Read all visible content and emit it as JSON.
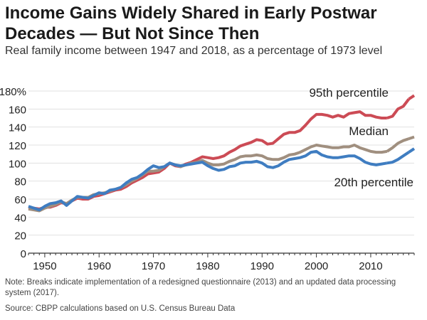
{
  "title": "Income Gains Widely Shared in Early Postwar Decades — But Not Since Then",
  "subtitle": "Real family income between 1947 and 2018, as a percentage of 1973 level",
  "note": "Note: Breaks indicate implementation of a redesigned questionnaire (2013) and an updated data processing system (2017).",
  "source": "Source: CBPP calculations based on U.S. Census Bureau Data",
  "chart_data": {
    "type": "line",
    "title": "Income Gains Widely Shared in Early Postwar Decades — But Not Since Then",
    "subtitle": "Real family income between 1947 and 2018, as a percentage of 1973 level",
    "xlim": [
      1947,
      2018
    ],
    "ylim": [
      0,
      180
    ],
    "x_ticks": [
      1950,
      1960,
      1970,
      1980,
      1990,
      2000,
      2010
    ],
    "y_ticks": [
      0,
      20,
      40,
      60,
      80,
      100,
      120,
      140,
      160,
      180
    ],
    "y_tick_labels": [
      "0",
      "20",
      "40",
      "60",
      "80",
      "100",
      "120",
      "140",
      "160",
      "180%"
    ],
    "grid": "horizontal",
    "breaks": [
      2013,
      2017
    ],
    "series": [
      {
        "name": "95th percentile",
        "color": "#cc4b55",
        "x": [
          1947,
          1948,
          1949,
          1950,
          1951,
          1952,
          1953,
          1954,
          1955,
          1956,
          1957,
          1958,
          1959,
          1960,
          1961,
          1962,
          1963,
          1964,
          1965,
          1966,
          1967,
          1968,
          1969,
          1970,
          1971,
          1972,
          1973,
          1974,
          1975,
          1976,
          1977,
          1978,
          1979,
          1980,
          1981,
          1982,
          1983,
          1984,
          1985,
          1986,
          1987,
          1988,
          1989,
          1990,
          1991,
          1992,
          1993,
          1994,
          1995,
          1996,
          1997,
          1998,
          1999,
          2000,
          2001,
          2002,
          2003,
          2004,
          2005,
          2006,
          2007,
          2008,
          2009,
          2010,
          2011,
          2012,
          2013,
          2014,
          2015,
          2016,
          2017,
          2018
        ],
        "values": [
          51,
          50,
          49,
          51,
          51,
          53,
          56,
          55,
          58,
          61,
          60,
          60,
          63,
          64,
          66,
          68,
          70,
          71,
          74,
          78,
          81,
          84,
          88,
          89,
          90,
          94,
          100,
          97,
          96,
          99,
          101,
          104,
          107,
          106,
          105,
          106,
          108,
          112,
          115,
          119,
          121,
          123,
          126,
          125,
          121,
          122,
          127,
          132,
          134,
          134,
          136,
          142,
          149,
          154,
          154,
          153,
          151,
          153,
          151,
          155,
          156,
          157,
          153,
          153,
          151,
          150,
          150,
          152,
          160,
          163,
          171,
          175
        ],
        "segments": [
          [
            1947,
            2013
          ],
          [
            2013,
            2017
          ],
          [
            2017,
            2018
          ]
        ]
      },
      {
        "name": "Median",
        "color": "#a08f7f",
        "x": [
          1947,
          1948,
          1949,
          1950,
          1951,
          1952,
          1953,
          1954,
          1955,
          1956,
          1957,
          1958,
          1959,
          1960,
          1961,
          1962,
          1963,
          1964,
          1965,
          1966,
          1967,
          1968,
          1969,
          1970,
          1971,
          1972,
          1973,
          1974,
          1975,
          1976,
          1977,
          1978,
          1979,
          1980,
          1981,
          1982,
          1983,
          1984,
          1985,
          1986,
          1987,
          1988,
          1989,
          1990,
          1991,
          1992,
          1993,
          1994,
          1995,
          1996,
          1997,
          1998,
          1999,
          2000,
          2001,
          2002,
          2003,
          2004,
          2005,
          2006,
          2007,
          2008,
          2009,
          2010,
          2011,
          2012,
          2013,
          2014,
          2015,
          2016,
          2017,
          2018
        ],
        "values": [
          49,
          48,
          47,
          50,
          52,
          54,
          57,
          55,
          59,
          62,
          62,
          62,
          65,
          66,
          67,
          69,
          71,
          73,
          76,
          80,
          83,
          87,
          91,
          91,
          92,
          96,
          100,
          98,
          96,
          98,
          100,
          101,
          103,
          100,
          98,
          98,
          99,
          102,
          104,
          107,
          108,
          108,
          109,
          108,
          105,
          104,
          104,
          106,
          109,
          110,
          112,
          115,
          118,
          120,
          119,
          118,
          117,
          117,
          118,
          118,
          120,
          117,
          115,
          113,
          112,
          112,
          113,
          117,
          122,
          125,
          127,
          129
        ],
        "segments": [
          [
            1947,
            2013
          ],
          [
            2013,
            2017
          ],
          [
            2017,
            2018
          ]
        ]
      },
      {
        "name": "20th percentile",
        "color": "#3f7dc1",
        "x": [
          1947,
          1948,
          1949,
          1950,
          1951,
          1952,
          1953,
          1954,
          1955,
          1956,
          1957,
          1958,
          1959,
          1960,
          1961,
          1962,
          1963,
          1964,
          1965,
          1966,
          1967,
          1968,
          1969,
          1970,
          1971,
          1972,
          1973,
          1974,
          1975,
          1976,
          1977,
          1978,
          1979,
          1980,
          1981,
          1982,
          1983,
          1984,
          1985,
          1986,
          1987,
          1988,
          1989,
          1990,
          1991,
          1992,
          1993,
          1994,
          1995,
          1996,
          1997,
          1998,
          1999,
          2000,
          2001,
          2002,
          2003,
          2004,
          2005,
          2006,
          2007,
          2008,
          2009,
          2010,
          2011,
          2012,
          2013,
          2014,
          2015,
          2016,
          2017,
          2018
        ],
        "values": [
          52,
          50,
          48,
          52,
          55,
          56,
          58,
          53,
          58,
          63,
          62,
          61,
          64,
          67,
          66,
          70,
          71,
          73,
          78,
          82,
          84,
          88,
          93,
          97,
          95,
          96,
          100,
          98,
          97,
          98,
          99,
          100,
          101,
          97,
          94,
          92,
          93,
          96,
          97,
          100,
          101,
          101,
          102,
          100,
          96,
          95,
          97,
          101,
          104,
          105,
          106,
          108,
          112,
          113,
          109,
          107,
          106,
          106,
          107,
          108,
          108,
          105,
          101,
          99,
          98,
          99,
          100,
          101,
          104,
          108,
          112,
          116
        ],
        "segments": [
          [
            1947,
            2013
          ],
          [
            2013,
            2017
          ],
          [
            2017,
            2018
          ]
        ]
      }
    ],
    "labels": [
      {
        "text": "95th percentile",
        "series": "95th percentile"
      },
      {
        "text": "Median",
        "series": "Median"
      },
      {
        "text": "20th percentile",
        "series": "20th percentile"
      }
    ]
  }
}
